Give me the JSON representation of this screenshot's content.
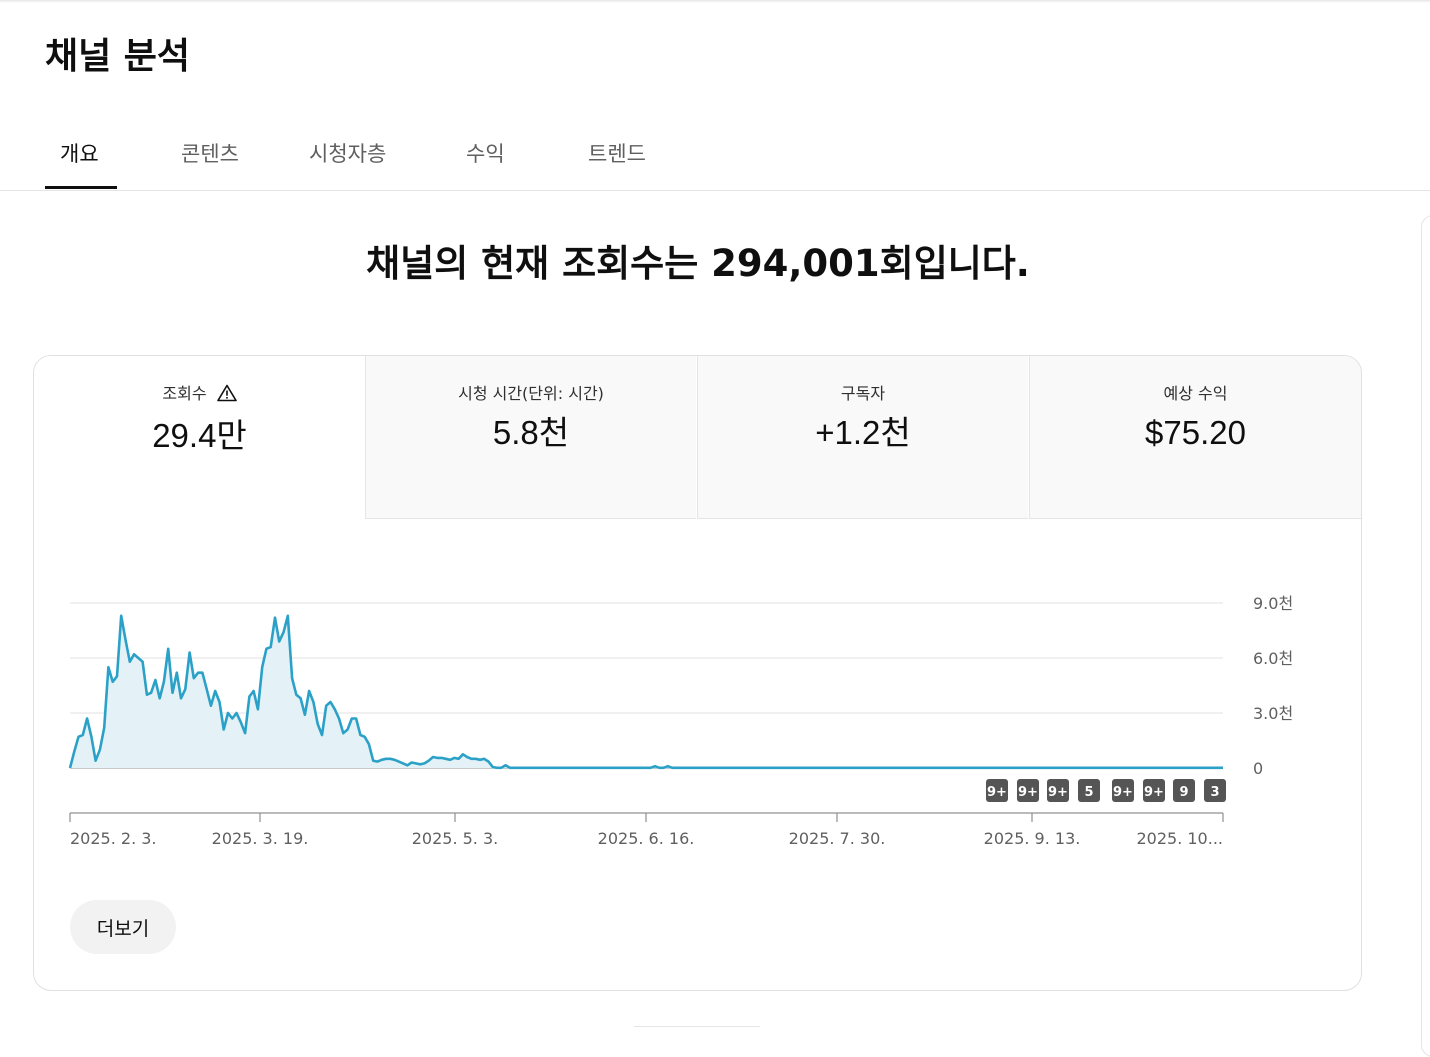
{
  "page": {
    "title": "채널 분석",
    "headline": "채널의 현재 조회수는 294,001회입니다."
  },
  "tabs": [
    {
      "label": "개요",
      "active": true
    },
    {
      "label": "콘텐츠",
      "active": false
    },
    {
      "label": "시청자층",
      "active": false
    },
    {
      "label": "수익",
      "active": false
    },
    {
      "label": "트렌드",
      "active": false
    }
  ],
  "metrics": [
    {
      "label": "조회수",
      "value": "29.4만",
      "warning": true,
      "active": true
    },
    {
      "label": "시청 시간(단위: 시간)",
      "value": "5.8천",
      "active": false
    },
    {
      "label": "구독자",
      "value": "+1.2천",
      "active": false
    },
    {
      "label": "예상 수익",
      "value": "$75.20",
      "active": false
    }
  ],
  "more_button": "더보기",
  "colors": {
    "line": "#2ba1c7",
    "fill": "#e4f2f8",
    "grid": "#e0e0e0",
    "badge": "#555555"
  },
  "chart_data": {
    "type": "area",
    "x_start": "2025. 2. 3.",
    "x_ticks": [
      "2025. 2. 3.",
      "2025. 3. 19.",
      "2025. 5. 3.",
      "2025. 6. 16.",
      "2025. 7. 30.",
      "2025. 9. 13.",
      "2025. 10..."
    ],
    "y_ticks": [
      "9.0천",
      "6.0천",
      "3.0천",
      "0"
    ],
    "ylim": [
      0,
      9000
    ],
    "values": [
      0,
      900,
      1700,
      1800,
      2700,
      1700,
      400,
      1000,
      2200,
      5500,
      4700,
      5000,
      8300,
      7000,
      5800,
      6200,
      6000,
      5800,
      4000,
      4100,
      4800,
      3800,
      4700,
      6500,
      4100,
      5200,
      3800,
      4300,
      6300,
      4900,
      5200,
      5200,
      4300,
      3400,
      4200,
      3600,
      2100,
      3000,
      2700,
      3000,
      2500,
      1900,
      3900,
      4200,
      3200,
      5500,
      6500,
      6600,
      8200,
      6900,
      7400,
      8300,
      4900,
      4000,
      3800,
      2900,
      4200,
      3600,
      2400,
      1800,
      3400,
      3600,
      3200,
      2700,
      1900,
      2100,
      2700,
      2700,
      1800,
      1700,
      1300,
      400,
      350,
      450,
      500,
      500,
      450,
      350,
      250,
      150,
      300,
      250,
      200,
      250,
      400,
      600,
      550,
      550,
      500,
      450,
      550,
      500,
      750,
      600,
      500,
      500,
      450,
      500,
      350,
      50,
      10,
      10,
      150,
      10,
      10,
      10,
      10,
      10,
      10,
      10,
      10,
      10,
      10,
      10,
      10,
      10,
      10,
      10,
      10,
      10,
      10,
      10,
      10,
      10,
      10,
      10,
      10,
      10,
      10,
      10,
      10,
      10,
      10,
      10,
      10,
      10,
      10,
      100,
      10,
      10,
      100,
      10,
      10,
      10,
      10,
      10,
      10,
      10,
      10,
      10,
      10,
      10,
      10,
      10,
      10,
      10,
      10,
      10,
      10,
      10,
      10,
      10,
      10,
      10,
      10,
      10,
      10,
      10,
      10,
      10,
      10,
      10,
      10,
      10,
      10,
      10,
      10,
      10,
      10,
      10,
      10,
      10,
      10,
      10,
      10,
      10,
      10,
      10,
      10,
      10,
      10,
      10,
      10,
      10,
      10,
      10,
      10,
      10,
      10,
      10,
      10,
      10,
      10,
      10,
      10,
      10,
      10,
      10,
      10,
      10,
      10,
      10,
      10,
      10,
      10,
      10,
      10,
      10,
      10,
      10,
      10,
      10,
      10,
      10,
      10,
      10,
      10,
      10,
      10,
      10,
      10,
      10,
      10,
      10,
      10,
      10,
      10,
      10,
      10,
      10,
      10,
      10,
      10,
      10,
      10,
      10,
      10,
      10,
      10,
      10,
      10,
      10,
      10,
      10,
      10,
      10,
      10,
      10,
      10,
      10,
      10,
      10,
      10,
      10,
      10,
      10,
      10,
      10,
      10,
      10,
      10
    ],
    "badges": [
      "9+",
      "9+",
      "9+",
      "5",
      "9+",
      "9+",
      "9",
      "3"
    ],
    "grid": true
  }
}
